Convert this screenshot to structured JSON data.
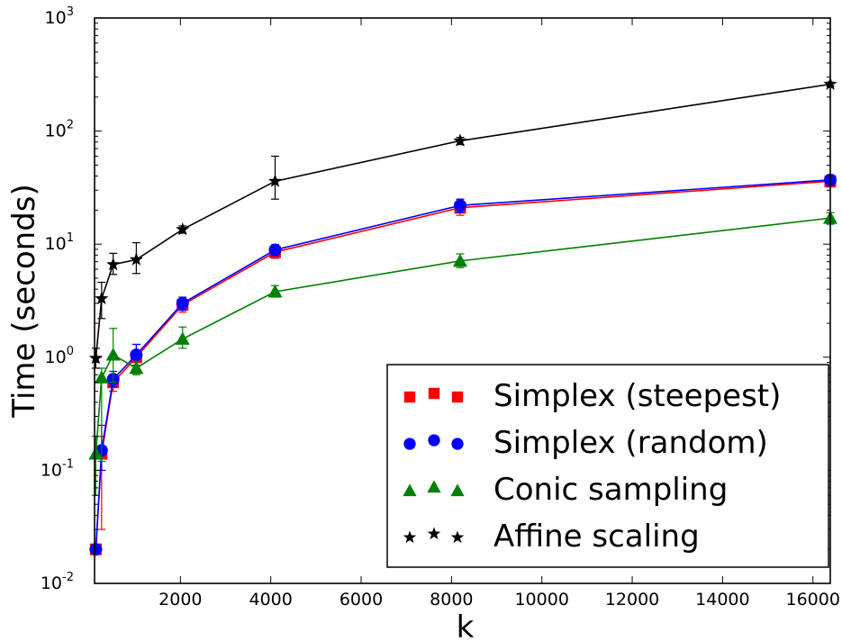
{
  "chart_data": {
    "type": "line",
    "title": "",
    "xlabel": "k",
    "ylabel": "Time (seconds)",
    "yscale": "log",
    "xlim": [
      100,
      16384
    ],
    "ylim": [
      0.01,
      1000
    ],
    "x_ticks": [
      2000,
      4000,
      6000,
      8000,
      10000,
      12000,
      14000,
      16000
    ],
    "y_ticks": [
      {
        "value": 0.01,
        "base": "10",
        "exp": "-2"
      },
      {
        "value": 0.1,
        "base": "10",
        "exp": "-1"
      },
      {
        "value": 1,
        "base": "10",
        "exp": "0"
      },
      {
        "value": 10,
        "base": "10",
        "exp": "1"
      },
      {
        "value": 100,
        "base": "10",
        "exp": "2"
      },
      {
        "value": 1000,
        "base": "10",
        "exp": "3"
      }
    ],
    "grid": false,
    "legend_position": "lower-right",
    "series": [
      {
        "name": "Simplex (steepest)",
        "color": "#ff0000",
        "marker": "square",
        "points": [
          {
            "x": 128,
            "y": 0.02,
            "lo": 0.02,
            "hi": 0.02
          },
          {
            "x": 256,
            "y": 0.14,
            "lo": 0.03,
            "hi": 0.2
          },
          {
            "x": 512,
            "y": 0.6,
            "lo": 0.5,
            "hi": 0.7
          },
          {
            "x": 1024,
            "y": 1.0,
            "lo": 0.8,
            "hi": 1.3
          },
          {
            "x": 2048,
            "y": 2.9,
            "lo": 2.5,
            "hi": 3.3
          },
          {
            "x": 4096,
            "y": 8.5,
            "lo": 7.5,
            "hi": 9.6
          },
          {
            "x": 8192,
            "y": 21,
            "lo": 18,
            "hi": 25
          },
          {
            "x": 16384,
            "y": 36,
            "lo": 32,
            "hi": 40
          }
        ]
      },
      {
        "name": "Simplex (random)",
        "color": "#0000ff",
        "marker": "circle",
        "points": [
          {
            "x": 128,
            "y": 0.02,
            "lo": 0.02,
            "hi": 0.02
          },
          {
            "x": 256,
            "y": 0.15,
            "lo": 0.1,
            "hi": 0.25
          },
          {
            "x": 512,
            "y": 0.64,
            "lo": 0.55,
            "hi": 0.75
          },
          {
            "x": 1024,
            "y": 1.05,
            "lo": 0.85,
            "hi": 1.3
          },
          {
            "x": 2048,
            "y": 3.0,
            "lo": 2.6,
            "hi": 3.4
          },
          {
            "x": 4096,
            "y": 8.9,
            "lo": 7.9,
            "hi": 9.9
          },
          {
            "x": 8192,
            "y": 22,
            "lo": 19,
            "hi": 25
          },
          {
            "x": 16384,
            "y": 37,
            "lo": 33,
            "hi": 41
          }
        ]
      },
      {
        "name": "Conic sampling",
        "color": "#008000",
        "marker": "triangle",
        "points": [
          {
            "x": 128,
            "y": 0.14,
            "lo": 0.06,
            "hi": 0.2
          },
          {
            "x": 256,
            "y": 0.66,
            "lo": 0.12,
            "hi": 0.8
          },
          {
            "x": 512,
            "y": 1.05,
            "lo": 0.6,
            "hi": 1.8
          },
          {
            "x": 1024,
            "y": 0.8,
            "lo": 0.7,
            "hi": 0.92
          },
          {
            "x": 2048,
            "y": 1.45,
            "lo": 1.2,
            "hi": 1.85
          },
          {
            "x": 4096,
            "y": 3.8,
            "lo": 3.4,
            "hi": 4.3
          },
          {
            "x": 8192,
            "y": 7.1,
            "lo": 6.2,
            "hi": 8.2
          },
          {
            "x": 16384,
            "y": 17,
            "lo": 15,
            "hi": 19
          }
        ]
      },
      {
        "name": "Affine scaling",
        "color": "#000000",
        "marker": "star",
        "points": [
          {
            "x": 128,
            "y": 0.98,
            "lo": 0.8,
            "hi": 1.2
          },
          {
            "x": 256,
            "y": 3.3,
            "lo": 2.2,
            "hi": 4.6
          },
          {
            "x": 512,
            "y": 6.6,
            "lo": 5.4,
            "hi": 8.3
          },
          {
            "x": 1024,
            "y": 7.3,
            "lo": 5.5,
            "hi": 10.3
          },
          {
            "x": 2048,
            "y": 13.5,
            "lo": 12.5,
            "hi": 14.5
          },
          {
            "x": 4096,
            "y": 36,
            "lo": 25,
            "hi": 60
          },
          {
            "x": 8192,
            "y": 82,
            "lo": 76,
            "hi": 88
          },
          {
            "x": 16384,
            "y": 260,
            "lo": 250,
            "hi": 270
          }
        ]
      }
    ]
  }
}
